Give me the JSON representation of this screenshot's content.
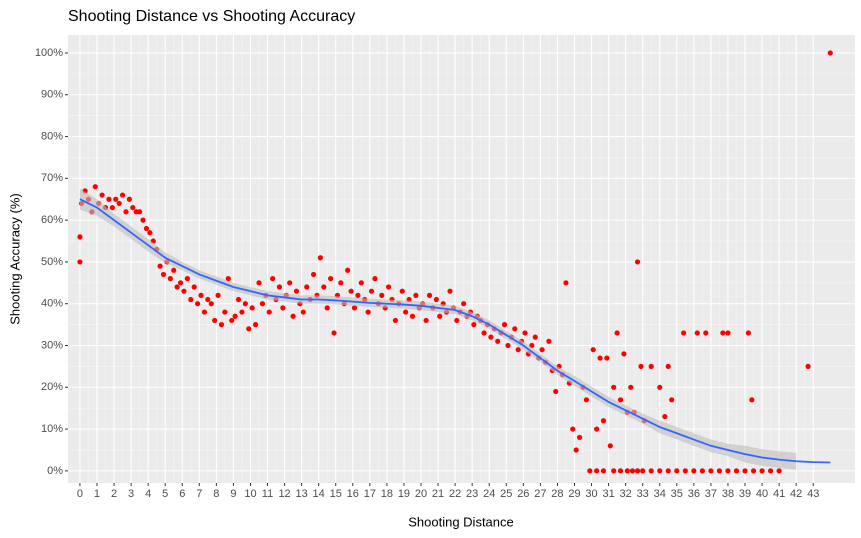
{
  "chart_data": {
    "type": "scatter",
    "title": "Shooting Distance vs Shooting Accuracy",
    "x_label": "Shooting Distance",
    "y_label": "Shooting Accuracy (%)",
    "xlim": [
      -0.7,
      45.45
    ],
    "ylim": [
      -2.9,
      104.3
    ],
    "xticks": [
      0,
      1,
      2,
      3,
      4,
      5,
      6,
      7,
      8,
      9,
      10,
      11,
      12,
      13,
      14,
      15,
      16,
      17,
      18,
      19,
      20,
      21,
      22,
      23,
      24,
      25,
      26,
      27,
      28,
      29,
      30,
      31,
      32,
      33,
      34,
      35,
      36,
      37,
      38,
      39,
      40,
      41,
      42,
      43
    ],
    "yticks": [
      {
        "value": 0,
        "label": "0%"
      },
      {
        "value": 10,
        "label": "10%"
      },
      {
        "value": 20,
        "label": "20%"
      },
      {
        "value": 30,
        "label": "30%"
      },
      {
        "value": 40,
        "label": "40%"
      },
      {
        "value": 50,
        "label": "50%"
      },
      {
        "value": 60,
        "label": "60%"
      },
      {
        "value": 70,
        "label": "70%"
      },
      {
        "value": 80,
        "label": "80%"
      },
      {
        "value": 90,
        "label": "90%"
      },
      {
        "value": 100,
        "label": "100%"
      }
    ],
    "grid": true,
    "series": [
      {
        "color": "#ff0000",
        "x": [
          0,
          0,
          0.1,
          0.3,
          0.5,
          0.7,
          0.9,
          1.1,
          1.3,
          1.5,
          1.7,
          1.9,
          2.1,
          2.3,
          2.5,
          2.7,
          2.9,
          3.1,
          3.3,
          3.5,
          3.7,
          3.9,
          4.1,
          4.3,
          4.5,
          4.7,
          4.9,
          5.1,
          5.3,
          5.5,
          5.7,
          5.9,
          6.1,
          6.3,
          6.5,
          6.7,
          6.9,
          7.1,
          7.3,
          7.5,
          7.7,
          7.9,
          8.1,
          8.3,
          8.5,
          8.7,
          8.9,
          9.1,
          9.3,
          9.5,
          9.7,
          9.9,
          10.1,
          10.3,
          10.5,
          10.7,
          10.9,
          11.1,
          11.3,
          11.5,
          11.7,
          11.9,
          12.1,
          12.3,
          12.5,
          12.7,
          12.9,
          13.1,
          13.3,
          13.5,
          13.7,
          13.9,
          14.1,
          14.3,
          14.5,
          14.7,
          14.9,
          15.1,
          15.3,
          15.5,
          15.7,
          15.9,
          16.1,
          16.3,
          16.5,
          16.7,
          16.9,
          17.1,
          17.3,
          17.5,
          17.7,
          17.9,
          18.1,
          18.3,
          18.5,
          18.7,
          18.9,
          19.1,
          19.3,
          19.5,
          19.7,
          19.9,
          20.1,
          20.3,
          20.5,
          20.7,
          20.9,
          21.1,
          21.3,
          21.5,
          21.7,
          21.9,
          22.1,
          22.3,
          22.5,
          22.7,
          22.9,
          23.1,
          23.3,
          23.5,
          23.7,
          23.9,
          24.1,
          24.3,
          24.5,
          24.7,
          24.9,
          25.1,
          25.3,
          25.5,
          25.7,
          25.9,
          26.1,
          26.3,
          26.5,
          26.7,
          26.9,
          27.1,
          27.3,
          27.5,
          27.7,
          27.9,
          28.1,
          28.3,
          28.5,
          28.7,
          28.9,
          29.1,
          29.3,
          29.5,
          29.7,
          29.9,
          30.1,
          30.3,
          30.5,
          30.7,
          30.9,
          31.1,
          31.3,
          31.5,
          31.7,
          31.9,
          32.1,
          32.3,
          32.5,
          32.7,
          32.9,
          33.1,
          33.5,
          34,
          34.3,
          34.5,
          34.7,
          35.4,
          36.2,
          36.7,
          37.7,
          38,
          39.2,
          39.4,
          42.7,
          44,
          30.3,
          30.7,
          31.3,
          31.7,
          32.1,
          32.4,
          32.7,
          33,
          33.5,
          34,
          34.5,
          35,
          35.5,
          36,
          36.5,
          37,
          37.5,
          38,
          38.5,
          39,
          39.5,
          40,
          40.5,
          41
        ],
        "values": [
          50,
          56,
          64,
          67,
          65,
          62,
          68,
          64,
          66,
          63,
          65,
          63,
          65,
          64,
          66,
          62,
          65,
          63,
          62,
          62,
          60,
          58,
          57,
          55,
          53,
          49,
          47,
          50,
          46,
          48,
          44,
          45,
          43,
          46,
          41,
          44,
          40,
          42,
          38,
          41,
          40,
          36,
          42,
          35,
          38,
          46,
          36,
          37,
          41,
          38,
          40,
          34,
          39,
          35,
          45,
          40,
          42,
          38,
          46,
          41,
          44,
          39,
          42,
          45,
          37,
          43,
          40,
          38,
          44,
          41,
          47,
          42,
          51,
          44,
          39,
          46,
          33,
          42,
          45,
          40,
          48,
          43,
          39,
          42,
          45,
          41,
          38,
          43,
          46,
          40,
          42,
          39,
          44,
          41,
          36,
          40,
          43,
          38,
          41,
          37,
          42,
          39,
          40,
          36,
          42,
          39,
          41,
          37,
          40,
          38,
          43,
          39,
          36,
          38,
          40,
          37,
          38,
          35,
          37,
          36,
          33,
          35,
          32,
          34,
          31,
          33,
          35,
          30,
          32,
          34,
          29,
          31,
          33,
          28,
          30,
          32,
          27,
          29,
          26,
          31,
          24,
          19,
          25,
          23,
          45,
          21,
          10,
          5,
          8,
          20,
          17,
          0,
          29,
          10,
          27,
          12,
          27,
          6,
          20,
          33,
          17,
          28,
          14,
          20,
          14,
          50,
          25,
          12,
          25,
          20,
          13,
          25,
          17,
          33,
          33,
          33,
          33,
          33,
          33,
          17,
          25,
          100,
          0,
          0,
          0,
          0,
          0,
          0,
          0,
          0,
          0,
          0,
          0,
          0,
          0,
          0,
          0,
          0,
          0,
          0,
          0,
          0,
          0,
          0,
          0,
          0
        ]
      }
    ],
    "smooth": {
      "type": "line",
      "color": "#3366ff",
      "band_color": "#bebebe",
      "x": [
        0,
        1,
        2,
        3,
        4,
        5,
        6,
        7,
        8,
        9,
        10,
        11,
        12,
        13,
        14,
        15,
        16,
        17,
        18,
        19,
        20,
        21,
        22,
        23,
        24,
        25,
        26,
        27,
        28,
        29,
        30,
        31,
        32,
        33,
        34,
        35,
        36,
        37,
        38,
        39,
        40,
        41,
        42,
        43,
        44
      ],
      "values": [
        65,
        63,
        60,
        57,
        54,
        51,
        49,
        47,
        45.5,
        44,
        43,
        42,
        41.5,
        41,
        41,
        40.8,
        40.5,
        40.2,
        40,
        39.8,
        39.5,
        39,
        38.5,
        37,
        35,
        32.5,
        30,
        27,
        24,
        21.5,
        19,
        16.5,
        14.5,
        12.5,
        10.5,
        9,
        7.5,
        6,
        5,
        4,
        3.2,
        2.7,
        2.3,
        2.1,
        2
      ],
      "lower": [
        62.5,
        61,
        58.5,
        55.5,
        52.5,
        49.7,
        48,
        46,
        44.5,
        43,
        42,
        41,
        40.5,
        40,
        40,
        39.8,
        39.5,
        39.2,
        39,
        38.8,
        38.5,
        38,
        37.5,
        36,
        34,
        31.5,
        29,
        26,
        23,
        20.3,
        17.8,
        15.3,
        13.3,
        11.3,
        9,
        7.5,
        6,
        4.5,
        3.5,
        2,
        1.2,
        0.7,
        0.3,
        null,
        null
      ],
      "upper": [
        67.5,
        65,
        61.5,
        58.5,
        55.5,
        52.3,
        50,
        48,
        46.5,
        45,
        44,
        43,
        42.5,
        42,
        42,
        41.8,
        41.5,
        41.2,
        41,
        40.8,
        40.5,
        40,
        39.5,
        38,
        36,
        33.5,
        31,
        28,
        25,
        22.7,
        20.2,
        17.7,
        15.7,
        13.7,
        12,
        10.5,
        9,
        7.5,
        6.5,
        6,
        5.2,
        4.7,
        4.3,
        null,
        null
      ]
    }
  }
}
